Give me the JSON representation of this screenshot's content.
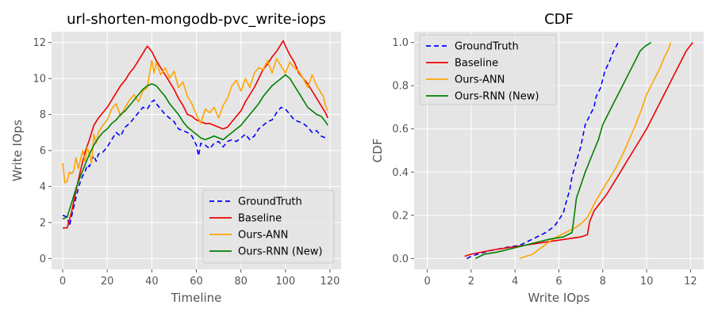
{
  "chart_data": [
    {
      "type": "line",
      "title": "url-shorten-mongodb-pvc_write-iops",
      "xlabel": "Timeline",
      "ylabel": "Write IOps",
      "xlim": [
        -5,
        125
      ],
      "ylim": [
        -0.6,
        12.6
      ],
      "xticks": [
        0,
        20,
        40,
        60,
        80,
        100,
        120
      ],
      "yticks": [
        0,
        2,
        4,
        6,
        8,
        10,
        12
      ],
      "grid": true,
      "legend_position": "lower-right",
      "series": [
        {
          "name": "GroundTruth",
          "color": "#0000ff",
          "dash": "6,4",
          "x": [
            0,
            2,
            3,
            5,
            6,
            7,
            8,
            9,
            10,
            11,
            12,
            13,
            14,
            15,
            16,
            18,
            20,
            22,
            24,
            26,
            28,
            30,
            32,
            34,
            36,
            38,
            40,
            41,
            42,
            44,
            46,
            48,
            50,
            52,
            54,
            56,
            58,
            60,
            61,
            62,
            64,
            66,
            68,
            70,
            72,
            74,
            76,
            78,
            80,
            82,
            84,
            86,
            88,
            90,
            92,
            94,
            96,
            98,
            100,
            102,
            104,
            106,
            108,
            110,
            112,
            114,
            116,
            118,
            119
          ],
          "y": [
            2.4,
            2.3,
            1.8,
            2.9,
            3.4,
            3.9,
            4.3,
            4.6,
            4.8,
            5.2,
            5.1,
            5.5,
            5.7,
            5.4,
            5.8,
            5.9,
            6.2,
            6.6,
            7.0,
            6.8,
            7.3,
            7.5,
            7.8,
            8.1,
            8.4,
            8.3,
            8.7,
            8.8,
            8.6,
            8.3,
            8.0,
            7.8,
            7.6,
            7.2,
            7.1,
            7.0,
            6.8,
            6.3,
            5.7,
            6.4,
            6.3,
            6.1,
            6.4,
            6.5,
            6.2,
            6.5,
            6.6,
            6.5,
            6.7,
            6.9,
            6.6,
            6.8,
            7.2,
            7.4,
            7.6,
            7.7,
            8.1,
            8.4,
            8.3,
            8.0,
            7.7,
            7.6,
            7.5,
            7.3,
            7.0,
            7.1,
            6.8,
            6.7,
            6.6
          ]
        },
        {
          "name": "Baseline",
          "color": "#ee0000",
          "dash": "",
          "x": [
            0,
            2,
            4,
            6,
            8,
            10,
            12,
            14,
            16,
            18,
            20,
            22,
            24,
            26,
            28,
            30,
            32,
            34,
            36,
            37,
            38,
            40,
            42,
            44,
            46,
            48,
            50,
            52,
            54,
            56,
            58,
            60,
            62,
            64,
            66,
            68,
            70,
            72,
            74,
            76,
            78,
            80,
            82,
            84,
            86,
            88,
            90,
            92,
            94,
            96,
            98,
            99,
            100,
            102,
            104,
            106,
            108,
            110,
            112,
            114,
            116,
            118,
            119
          ],
          "y": [
            1.7,
            1.7,
            2.6,
            3.8,
            4.9,
            5.9,
            6.6,
            7.4,
            7.8,
            8.1,
            8.4,
            8.8,
            9.2,
            9.6,
            9.9,
            10.3,
            10.6,
            11.0,
            11.4,
            11.6,
            11.8,
            11.5,
            11.0,
            10.6,
            10.2,
            9.8,
            9.4,
            8.9,
            8.5,
            8.0,
            7.9,
            7.7,
            7.6,
            7.5,
            7.5,
            7.4,
            7.3,
            7.2,
            7.3,
            7.6,
            7.9,
            8.2,
            8.7,
            9.1,
            9.5,
            10.0,
            10.5,
            10.8,
            11.2,
            11.5,
            11.9,
            12.1,
            11.8,
            11.3,
            10.9,
            10.3,
            10.0,
            9.7,
            9.3,
            8.9,
            8.5,
            8.1,
            7.8
          ]
        },
        {
          "name": "Ours-ANN",
          "color": "#ffa500",
          "dash": "",
          "x": [
            0,
            1,
            2,
            3,
            4,
            5,
            6,
            7,
            8,
            9,
            10,
            11,
            12,
            13,
            14,
            15,
            16,
            18,
            20,
            22,
            24,
            26,
            28,
            30,
            32,
            34,
            36,
            38,
            40,
            41,
            42,
            44,
            46,
            48,
            50,
            52,
            54,
            56,
            58,
            60,
            62,
            64,
            66,
            68,
            70,
            72,
            74,
            76,
            78,
            80,
            82,
            84,
            86,
            88,
            90,
            92,
            94,
            96,
            98,
            100,
            102,
            104,
            106,
            108,
            110,
            112,
            114,
            116,
            117,
            118,
            119
          ],
          "y": [
            5.3,
            4.2,
            4.3,
            4.8,
            4.7,
            4.9,
            5.6,
            5.0,
            5.5,
            6.0,
            5.4,
            6.2,
            5.8,
            5.3,
            6.9,
            6.4,
            7.0,
            7.4,
            7.7,
            8.3,
            8.6,
            7.9,
            8.4,
            8.8,
            9.1,
            8.7,
            9.3,
            9.5,
            11.0,
            10.3,
            10.9,
            10.2,
            10.6,
            10.0,
            10.4,
            9.5,
            9.8,
            9.0,
            8.6,
            8.0,
            7.5,
            8.3,
            8.1,
            8.4,
            7.8,
            8.5,
            8.9,
            9.6,
            9.9,
            9.3,
            10.0,
            9.5,
            10.3,
            10.6,
            10.5,
            11.0,
            10.3,
            11.1,
            10.7,
            10.3,
            10.9,
            10.6,
            10.4,
            10.0,
            9.5,
            10.2,
            9.6,
            9.2,
            9.0,
            8.5,
            8.2
          ]
        },
        {
          "name": "Ours-RNN (New)",
          "color": "#008000",
          "dash": "",
          "x": [
            0,
            2,
            4,
            6,
            8,
            10,
            12,
            14,
            16,
            18,
            20,
            22,
            24,
            26,
            28,
            30,
            32,
            34,
            36,
            38,
            40,
            42,
            44,
            46,
            48,
            50,
            52,
            54,
            56,
            58,
            60,
            62,
            64,
            66,
            68,
            70,
            72,
            74,
            76,
            78,
            80,
            82,
            84,
            86,
            88,
            90,
            92,
            94,
            96,
            98,
            100,
            102,
            104,
            106,
            108,
            110,
            112,
            114,
            116,
            118,
            119
          ],
          "y": [
            2.2,
            2.3,
            3.1,
            3.9,
            4.6,
            5.2,
            5.8,
            6.3,
            6.7,
            7.0,
            7.2,
            7.5,
            7.7,
            8.0,
            8.2,
            8.5,
            8.8,
            9.1,
            9.4,
            9.6,
            9.7,
            9.6,
            9.3,
            9.0,
            8.6,
            8.3,
            8.0,
            7.6,
            7.3,
            7.1,
            6.9,
            6.7,
            6.6,
            6.7,
            6.8,
            6.7,
            6.6,
            6.8,
            7.0,
            7.2,
            7.4,
            7.7,
            8.0,
            8.3,
            8.6,
            9.0,
            9.3,
            9.6,
            9.8,
            10.0,
            10.2,
            10.0,
            9.6,
            9.2,
            8.8,
            8.4,
            8.2,
            8.0,
            7.9,
            7.6,
            7.4
          ]
        }
      ]
    },
    {
      "type": "line",
      "title": "CDF",
      "xlabel": "Write IOps",
      "ylabel": "CDF",
      "xlim": [
        -0.6,
        12.6
      ],
      "ylim": [
        -0.05,
        1.05
      ],
      "xticks": [
        0,
        2,
        4,
        6,
        8,
        10,
        12
      ],
      "yticks": [
        0.0,
        0.2,
        0.4,
        0.6,
        0.8,
        1.0
      ],
      "grid": true,
      "legend_position": "upper-left",
      "series": [
        {
          "name": "GroundTruth",
          "color": "#0000ff",
          "dash": "6,4",
          "x": [
            1.8,
            2.0,
            2.3,
            2.8,
            3.3,
            3.8,
            4.2,
            4.6,
            5.0,
            5.4,
            5.8,
            6.0,
            6.2,
            6.3,
            6.5,
            6.6,
            6.8,
            7.0,
            7.1,
            7.2,
            7.4,
            7.6,
            7.7,
            7.9,
            8.0,
            8.1,
            8.3,
            8.4,
            8.5,
            8.6,
            8.7
          ],
          "y": [
            0.0,
            0.01,
            0.02,
            0.035,
            0.045,
            0.055,
            0.06,
            0.08,
            0.1,
            0.12,
            0.15,
            0.18,
            0.21,
            0.25,
            0.32,
            0.38,
            0.45,
            0.52,
            0.57,
            0.62,
            0.66,
            0.7,
            0.75,
            0.79,
            0.83,
            0.87,
            0.91,
            0.94,
            0.96,
            0.98,
            1.0
          ]
        },
        {
          "name": "Baseline",
          "color": "#ee0000",
          "dash": "",
          "x": [
            1.7,
            2.0,
            3.0,
            4.0,
            5.0,
            6.0,
            7.0,
            7.3,
            7.4,
            7.6,
            7.9,
            8.2,
            8.5,
            8.8,
            9.1,
            9.4,
            9.7,
            10.0,
            10.3,
            10.6,
            10.9,
            11.2,
            11.5,
            11.8,
            12.1
          ],
          "y": [
            0.01,
            0.02,
            0.04,
            0.055,
            0.07,
            0.085,
            0.1,
            0.11,
            0.17,
            0.22,
            0.26,
            0.3,
            0.35,
            0.4,
            0.45,
            0.5,
            0.55,
            0.6,
            0.66,
            0.72,
            0.78,
            0.84,
            0.9,
            0.96,
            1.0
          ]
        },
        {
          "name": "Ours-ANN",
          "color": "#ffa500",
          "dash": "",
          "x": [
            4.2,
            4.5,
            4.8,
            5.2,
            5.6,
            5.9,
            6.3,
            6.7,
            7.0,
            7.3,
            7.5,
            7.7,
            8.0,
            8.3,
            8.6,
            8.9,
            9.2,
            9.5,
            9.8,
            10.0,
            10.3,
            10.6,
            10.8,
            11.0,
            11.1
          ],
          "y": [
            0.0,
            0.01,
            0.02,
            0.05,
            0.08,
            0.1,
            0.12,
            0.14,
            0.16,
            0.19,
            0.23,
            0.27,
            0.32,
            0.37,
            0.42,
            0.48,
            0.55,
            0.62,
            0.7,
            0.76,
            0.82,
            0.88,
            0.93,
            0.97,
            1.0
          ]
        },
        {
          "name": "Ours-RNN (New)",
          "color": "#008000",
          "dash": "",
          "x": [
            2.2,
            2.6,
            3.2,
            3.8,
            4.4,
            5.0,
            5.6,
            6.2,
            6.6,
            6.7,
            6.8,
            7.0,
            7.2,
            7.4,
            7.6,
            7.8,
            8.0,
            8.3,
            8.6,
            8.9,
            9.2,
            9.5,
            9.7,
            9.9,
            10.2
          ],
          "y": [
            0.0,
            0.02,
            0.03,
            0.045,
            0.06,
            0.075,
            0.09,
            0.1,
            0.12,
            0.2,
            0.28,
            0.34,
            0.4,
            0.45,
            0.5,
            0.55,
            0.62,
            0.68,
            0.74,
            0.8,
            0.86,
            0.92,
            0.96,
            0.98,
            1.0
          ]
        }
      ]
    }
  ]
}
